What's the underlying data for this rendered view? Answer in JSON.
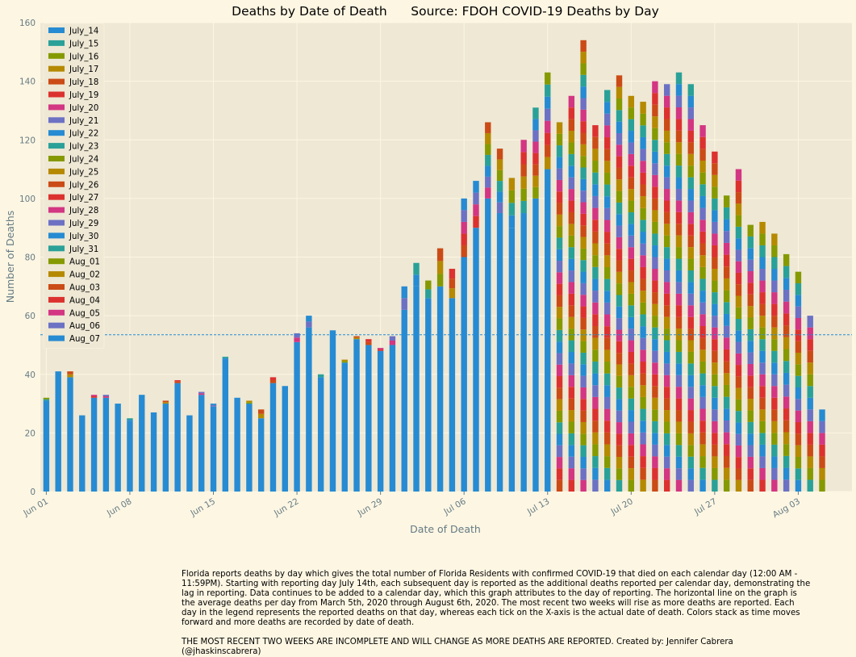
{
  "chart_data": {
    "type": "bar",
    "stacked": true,
    "title": "Deaths by Date of Death      Source: FDOH COVID-19 Deaths by Day",
    "xlabel": "Date of Death",
    "ylabel": "Number of Deaths",
    "ylim": [
      0,
      160
    ],
    "yticks": [
      0,
      20,
      40,
      60,
      80,
      100,
      120,
      140,
      160
    ],
    "average_line": 53.5,
    "grid": true,
    "legend_position": "top-left",
    "categories": [
      "Jun 01",
      "Jun 02",
      "Jun 03",
      "Jun 04",
      "Jun 05",
      "Jun 06",
      "Jun 07",
      "Jun 08",
      "Jun 09",
      "Jun 10",
      "Jun 11",
      "Jun 12",
      "Jun 13",
      "Jun 14",
      "Jun 15",
      "Jun 16",
      "Jun 17",
      "Jun 18",
      "Jun 19",
      "Jun 20",
      "Jun 21",
      "Jun 22",
      "Jun 23",
      "Jun 24",
      "Jun 25",
      "Jun 26",
      "Jun 27",
      "Jun 28",
      "Jun 29",
      "Jun 30",
      "Jul 01",
      "Jul 02",
      "Jul 03",
      "Jul 04",
      "Jul 05",
      "Jul 06",
      "Jul 07",
      "Jul 08",
      "Jul 09",
      "Jul 10",
      "Jul 11",
      "Jul 12",
      "Jul 13",
      "Jul 14",
      "Jul 15",
      "Jul 16",
      "Jul 17",
      "Jul 18",
      "Jul 19",
      "Jul 20",
      "Jul 21",
      "Jul 22",
      "Jul 23",
      "Jul 24",
      "Jul 25",
      "Jul 26",
      "Jul 27",
      "Jul 28",
      "Jul 29",
      "Jul 30",
      "Jul 31",
      "Aug 01",
      "Aug 02",
      "Aug 03",
      "Aug 04",
      "Aug 05",
      "Aug 06",
      "Aug 07"
    ],
    "xtick_labels": [
      {
        "index": 0,
        "label": "Jun 01"
      },
      {
        "index": 7,
        "label": "Jun 08"
      },
      {
        "index": 14,
        "label": "Jun 15"
      },
      {
        "index": 21,
        "label": "Jun 22"
      },
      {
        "index": 28,
        "label": "Jun 29"
      },
      {
        "index": 35,
        "label": "Jul 06"
      },
      {
        "index": 42,
        "label": "Jul 13"
      },
      {
        "index": 49,
        "label": "Jul 20"
      },
      {
        "index": 56,
        "label": "Jul 27"
      },
      {
        "index": 63,
        "label": "Aug 03"
      }
    ],
    "series_names": [
      "July_14",
      "July_15",
      "July_16",
      "July_17",
      "July_18",
      "July_19",
      "July_20",
      "July_21",
      "July_22",
      "July_23",
      "July_24",
      "July_25",
      "July_26",
      "July_27",
      "July_28",
      "July_29",
      "July_30",
      "July_31",
      "Aug_01",
      "Aug_02",
      "Aug_03",
      "Aug_04",
      "Aug_05",
      "Aug_06",
      "Aug_07"
    ],
    "colors": [
      "#268bd2",
      "#2aa198",
      "#859900",
      "#b58900",
      "#cb4b16",
      "#dc322f",
      "#d33682",
      "#6c71c4"
    ],
    "totals": [
      32,
      41,
      41,
      26,
      33,
      33,
      30,
      25,
      33,
      27,
      31,
      38,
      26,
      34,
      30,
      46,
      32,
      31,
      28,
      39,
      36,
      54,
      60,
      40,
      55,
      45,
      53,
      52,
      49,
      53,
      70,
      78,
      72,
      83,
      76,
      100,
      106,
      126,
      117,
      107,
      120,
      131,
      143,
      126,
      135,
      154,
      125,
      137,
      142,
      135,
      133,
      140,
      139,
      143,
      139,
      125,
      116,
      101,
      110,
      91,
      92,
      88,
      81,
      75,
      60,
      28,
      0,
      0
    ],
    "base_july14": [
      31,
      41,
      39,
      26,
      32,
      32,
      30,
      24,
      33,
      27,
      30,
      37,
      26,
      33,
      29,
      45,
      32,
      30,
      25,
      37,
      36,
      51,
      56,
      38,
      55,
      44,
      52,
      50,
      48,
      50,
      62,
      70,
      66,
      70,
      66,
      80,
      90,
      100,
      95,
      90,
      95,
      100,
      110,
      0,
      0,
      0,
      0,
      0,
      0,
      0,
      0,
      0,
      0,
      0,
      0,
      0,
      0,
      0,
      0,
      0,
      0,
      0,
      0,
      0,
      0,
      0,
      0,
      0
    ]
  },
  "caption": {
    "paragraph": "Florida reports deaths by day which gives the total number of Florida Residents with confirmed COVID-19 that died on each calendar day (12:00 AM - 11:59PM). Starting with reporting day July 14th, each subsequent day is reported as the additional deaths reported per calendar day, demonstrating the lag in reporting. Data continues to be added to a calendar day, which this graph attributes to the day of reporting. The horizontal line on the graph is the average deaths per day from March 5th, 2020 through August 6th, 2020. The most recent two weeks will rise as more deaths are reported. Each day in the legend represents the reported deaths on that day, whereas each tick on the X-axis is the actual date of death. Colors stack as time moves forward and more deaths are recorded by date of death.",
    "note": "THE MOST RECENT TWO WEEKS ARE INCOMPLETE AND WILL CHANGE AS MORE DEATHS ARE REPORTED. Created by: Jennifer Cabrera (@jhaskinscabrera)"
  }
}
